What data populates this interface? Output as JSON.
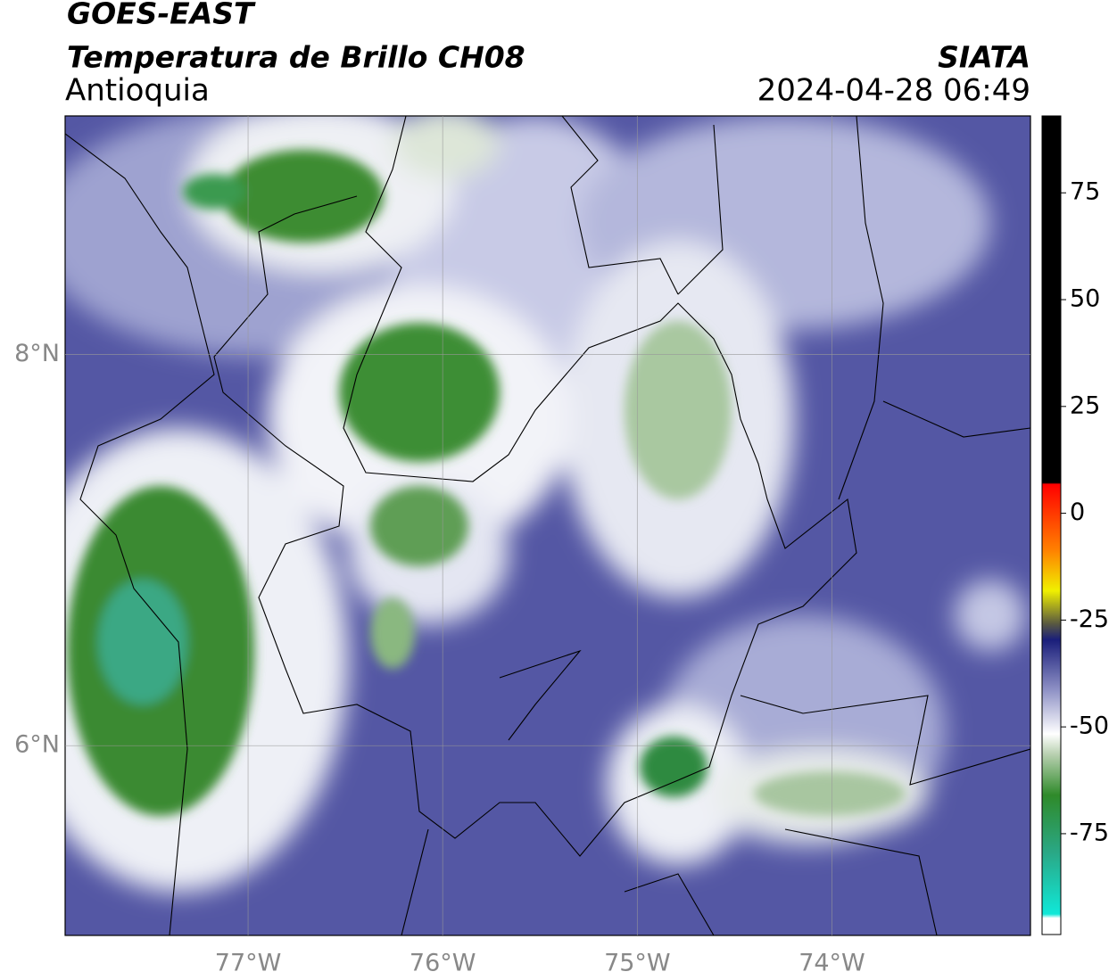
{
  "header": {
    "source": "GOES-EAST",
    "product": "Temperatura de Brillo CH08",
    "region": "Antioquia",
    "agency": "SIATA",
    "timestamp": "2024-04-28 06:49"
  },
  "map": {
    "xlim": [
      -77.94,
      -72.98
    ],
    "ylim": [
      5.03,
      9.22
    ],
    "xticks": [
      {
        "value": -77,
        "label": "77°W"
      },
      {
        "value": -76,
        "label": "76°W"
      },
      {
        "value": -75,
        "label": "75°W"
      },
      {
        "value": -74,
        "label": "74°W"
      }
    ],
    "yticks": [
      {
        "value": 8,
        "label": "8°N"
      },
      {
        "value": 6,
        "label": "6°N"
      }
    ],
    "grid": true
  },
  "colorbar": {
    "lim": [
      -98.6,
      93
    ],
    "ticks": [
      75,
      50,
      25,
      0,
      -25,
      -50,
      -75
    ]
  }
}
